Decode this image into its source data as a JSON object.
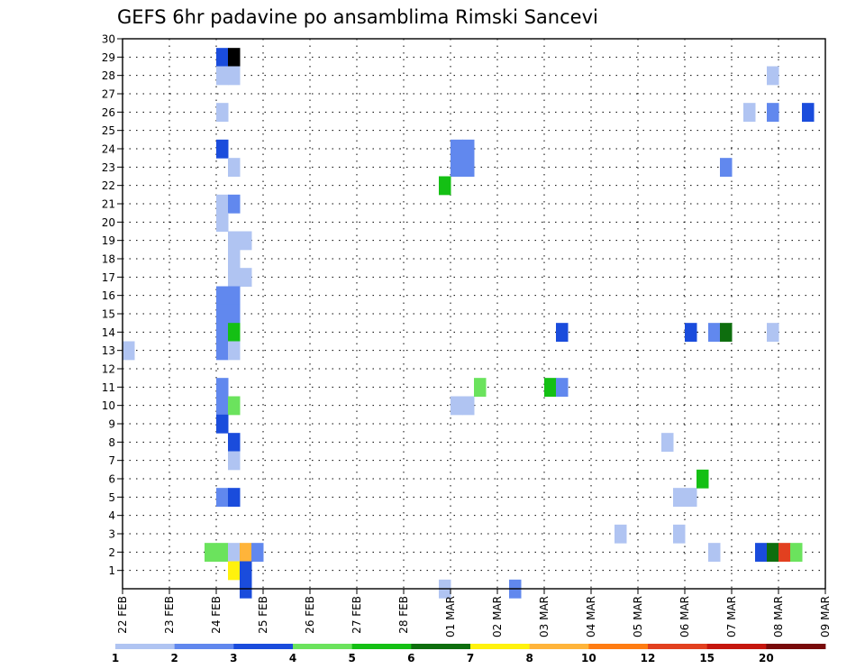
{
  "chart_data": {
    "type": "heatmap",
    "title": "GEFS 6hr padavine po ansamblima Rimski Sancevi",
    "xlabel": "",
    "ylabel": "",
    "x_tick_labels": [
      "22 FEB",
      "23 FEB",
      "24 FEB",
      "25 FEB",
      "26 FEB",
      "27 FEB",
      "28 FEB",
      "01 MAR",
      "02 MAR",
      "03 MAR",
      "04 MAR",
      "05 MAR",
      "06 MAR",
      "07 MAR",
      "08 MAR",
      "09 MAR"
    ],
    "xlim": [
      0,
      60
    ],
    "x_unit": "6-hour step since 22 FEB 00Z",
    "y_ticks": [
      1,
      2,
      3,
      4,
      5,
      6,
      7,
      8,
      9,
      10,
      11,
      12,
      13,
      14,
      15,
      16,
      17,
      18,
      19,
      20,
      21,
      22,
      23,
      24,
      25,
      26,
      27,
      28,
      29,
      30
    ],
    "ylim": [
      0,
      30
    ],
    "grid": true,
    "colorbar": {
      "colors": [
        "#b0c4f2",
        "#6188ee",
        "#1a4cdc",
        "#6be35d",
        "#14c014",
        "#0e6e0e",
        "#fff20d",
        "#ffb43a",
        "#ff7c12",
        "#e2401f",
        "#c5160e",
        "#780a0a"
      ],
      "labels": [
        "1",
        "2",
        "3",
        "4",
        "5",
        "6",
        "7",
        "8",
        "10",
        "12",
        "15",
        "20",
        ""
      ]
    },
    "cells": [
      {
        "x": 0,
        "y": 13,
        "v": 1
      },
      {
        "x": 8,
        "y": 29,
        "v": 3
      },
      {
        "x": 9,
        "y": 29,
        "v": 20
      },
      {
        "x": 8,
        "y": 28,
        "v": 1
      },
      {
        "x": 9,
        "y": 28,
        "v": 1
      },
      {
        "x": 8,
        "y": 26,
        "v": 1
      },
      {
        "x": 8,
        "y": 24,
        "v": 3
      },
      {
        "x": 9,
        "y": 23,
        "v": 1
      },
      {
        "x": 8,
        "y": 21,
        "v": 1
      },
      {
        "x": 9,
        "y": 21,
        "v": 2
      },
      {
        "x": 8,
        "y": 20,
        "v": 1
      },
      {
        "x": 9,
        "y": 19,
        "v": 1
      },
      {
        "x": 10,
        "y": 19,
        "v": 1
      },
      {
        "x": 9,
        "y": 18,
        "v": 1
      },
      {
        "x": 9,
        "y": 17,
        "v": 1
      },
      {
        "x": 10,
        "y": 17,
        "v": 1
      },
      {
        "x": 8,
        "y": 16,
        "v": 2
      },
      {
        "x": 9,
        "y": 16,
        "v": 2
      },
      {
        "x": 8,
        "y": 15,
        "v": 2
      },
      {
        "x": 9,
        "y": 15,
        "v": 2
      },
      {
        "x": 8,
        "y": 14,
        "v": 2
      },
      {
        "x": 9,
        "y": 14,
        "v": 5
      },
      {
        "x": 8,
        "y": 13,
        "v": 2
      },
      {
        "x": 9,
        "y": 13,
        "v": 1
      },
      {
        "x": 8,
        "y": 11,
        "v": 2
      },
      {
        "x": 8,
        "y": 10,
        "v": 2
      },
      {
        "x": 9,
        "y": 10,
        "v": 4
      },
      {
        "x": 8,
        "y": 9,
        "v": 3
      },
      {
        "x": 9,
        "y": 8,
        "v": 3
      },
      {
        "x": 9,
        "y": 7,
        "v": 1
      },
      {
        "x": 8,
        "y": 5,
        "v": 2
      },
      {
        "x": 9,
        "y": 5,
        "v": 3
      },
      {
        "x": 7,
        "y": 2,
        "v": 4
      },
      {
        "x": 8,
        "y": 2,
        "v": 4
      },
      {
        "x": 9,
        "y": 2,
        "v": 1
      },
      {
        "x": 10,
        "y": 2,
        "v": 8
      },
      {
        "x": 11,
        "y": 2,
        "v": 2
      },
      {
        "x": 9,
        "y": 1,
        "v": 7
      },
      {
        "x": 10,
        "y": 1,
        "v": 3
      },
      {
        "x": 10,
        "y": 0,
        "v": 3
      },
      {
        "x": 28,
        "y": 24,
        "v": 2
      },
      {
        "x": 29,
        "y": 24,
        "v": 2
      },
      {
        "x": 28,
        "y": 23,
        "v": 2
      },
      {
        "x": 29,
        "y": 23,
        "v": 2
      },
      {
        "x": 28,
        "y": 10,
        "v": 1
      },
      {
        "x": 29,
        "y": 10,
        "v": 1
      },
      {
        "x": 30,
        "y": 11,
        "v": 4
      },
      {
        "x": 27,
        "y": 22,
        "v": 5
      },
      {
        "x": 27,
        "y": 0,
        "v": 1
      },
      {
        "x": 33,
        "y": 0,
        "v": 2
      },
      {
        "x": 36,
        "y": 11,
        "v": 5
      },
      {
        "x": 37,
        "y": 11,
        "v": 2
      },
      {
        "x": 37,
        "y": 14,
        "v": 3
      },
      {
        "x": 42,
        "y": 3,
        "v": 1
      },
      {
        "x": 46,
        "y": 8,
        "v": 1
      },
      {
        "x": 47,
        "y": 3,
        "v": 1
      },
      {
        "x": 47,
        "y": 5,
        "v": 1
      },
      {
        "x": 48,
        "y": 5,
        "v": 1
      },
      {
        "x": 48,
        "y": 14,
        "v": 3
      },
      {
        "x": 49,
        "y": 6,
        "v": 5
      },
      {
        "x": 50,
        "y": 2,
        "v": 1
      },
      {
        "x": 50,
        "y": 14,
        "v": 2
      },
      {
        "x": 51,
        "y": 14,
        "v": 6
      },
      {
        "x": 51,
        "y": 23,
        "v": 2
      },
      {
        "x": 53,
        "y": 26,
        "v": 1
      },
      {
        "x": 55,
        "y": 28,
        "v": 1
      },
      {
        "x": 55,
        "y": 26,
        "v": 2
      },
      {
        "x": 55,
        "y": 14,
        "v": 1
      },
      {
        "x": 58,
        "y": 26,
        "v": 3
      },
      {
        "x": 54,
        "y": 2,
        "v": 3
      },
      {
        "x": 55,
        "y": 2,
        "v": 6
      },
      {
        "x": 56,
        "y": 2,
        "v": 10
      },
      {
        "x": 57,
        "y": 2,
        "v": 4
      }
    ]
  }
}
